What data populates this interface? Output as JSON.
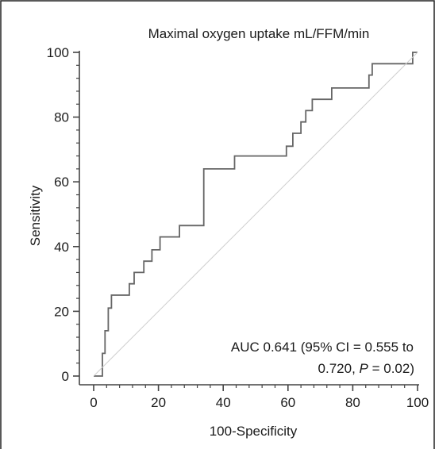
{
  "chart_data": {
    "type": "line",
    "title": "Maximal oxygen uptake mL/FFM/min",
    "xlabel": "100-Specificity",
    "ylabel": "Sensitivity",
    "xlim": [
      0,
      100
    ],
    "ylim": [
      0,
      100
    ],
    "x_ticks": [
      "0",
      "20",
      "40",
      "60",
      "80",
      "100"
    ],
    "y_ticks": [
      "0",
      "20",
      "40",
      "60",
      "80",
      "100"
    ],
    "grid": false,
    "legend": "none",
    "annotation": {
      "line1": "AUC 0.641 (95% CI = 0.555 to",
      "line2_prefix": "0.720, ",
      "line2_p": "P",
      "line2_suffix": " = 0.02)"
    },
    "series": [
      {
        "style": "step",
        "points": [
          [
            0,
            0
          ],
          [
            2.7,
            0
          ],
          [
            2.7,
            7
          ],
          [
            3.5,
            7
          ],
          [
            3.5,
            14
          ],
          [
            4.5,
            14
          ],
          [
            4.5,
            21
          ],
          [
            5.5,
            21
          ],
          [
            5.5,
            25
          ],
          [
            11,
            25
          ],
          [
            11,
            28.5
          ],
          [
            12.5,
            28.5
          ],
          [
            12.5,
            32
          ],
          [
            15.5,
            32
          ],
          [
            15.5,
            35.5
          ],
          [
            18,
            35.5
          ],
          [
            18,
            39
          ],
          [
            20.5,
            39
          ],
          [
            20.5,
            43
          ],
          [
            26.5,
            43
          ],
          [
            26.5,
            46.5
          ],
          [
            34,
            46.5
          ],
          [
            34,
            64
          ],
          [
            43.5,
            64
          ],
          [
            43.5,
            68
          ],
          [
            59.5,
            68
          ],
          [
            59.5,
            71
          ],
          [
            61.5,
            71
          ],
          [
            61.5,
            75
          ],
          [
            64,
            75
          ],
          [
            64,
            78.5
          ],
          [
            65.5,
            78.5
          ],
          [
            65.5,
            82
          ],
          [
            67.5,
            82
          ],
          [
            67.5,
            85.5
          ],
          [
            73.5,
            85.5
          ],
          [
            73.5,
            89
          ],
          [
            85,
            89
          ],
          [
            85,
            93
          ],
          [
            86,
            93
          ],
          [
            86,
            96.5
          ],
          [
            98.5,
            96.5
          ],
          [
            98.5,
            100
          ],
          [
            100,
            100
          ]
        ]
      },
      {
        "style": "reference",
        "points": [
          [
            0,
            0
          ],
          [
            100,
            100
          ]
        ]
      }
    ]
  }
}
